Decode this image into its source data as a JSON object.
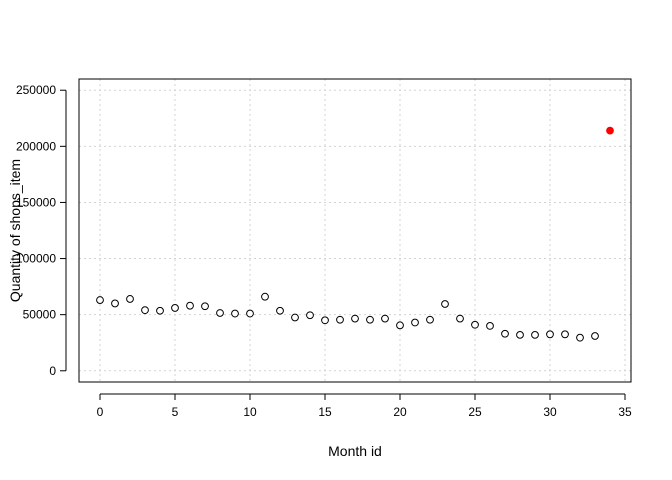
{
  "chart_data": {
    "type": "scatter",
    "title": "",
    "xlabel": "Month id",
    "ylabel": "Quantity of shops_item",
    "xlim": [
      -1.4,
      35.4
    ],
    "ylim": [
      -10000,
      260000
    ],
    "x_ticks": [
      0,
      5,
      10,
      15,
      20,
      25,
      30,
      35
    ],
    "y_ticks": [
      0,
      50000,
      100000,
      150000,
      200000,
      250000
    ],
    "grid": true,
    "legend": "none",
    "series": [
      {
        "marker": "open-circle",
        "color": "#000000",
        "points": [
          {
            "x": 0,
            "y": 63000
          },
          {
            "x": 1,
            "y": 60000
          },
          {
            "x": 2,
            "y": 64000
          },
          {
            "x": 3,
            "y": 54000
          },
          {
            "x": 4,
            "y": 53500
          },
          {
            "x": 5,
            "y": 56000
          },
          {
            "x": 6,
            "y": 58000
          },
          {
            "x": 7,
            "y": 57500
          },
          {
            "x": 8,
            "y": 51500
          },
          {
            "x": 9,
            "y": 51000
          },
          {
            "x": 10,
            "y": 51000
          },
          {
            "x": 11,
            "y": 66000
          },
          {
            "x": 12,
            "y": 53500
          },
          {
            "x": 13,
            "y": 47500
          },
          {
            "x": 14,
            "y": 49500
          },
          {
            "x": 15,
            "y": 45000
          },
          {
            "x": 16,
            "y": 45500
          },
          {
            "x": 17,
            "y": 46500
          },
          {
            "x": 18,
            "y": 45500
          },
          {
            "x": 19,
            "y": 46500
          },
          {
            "x": 20,
            "y": 40500
          },
          {
            "x": 21,
            "y": 43000
          },
          {
            "x": 22,
            "y": 45500
          },
          {
            "x": 23,
            "y": 59500
          },
          {
            "x": 24,
            "y": 46500
          },
          {
            "x": 25,
            "y": 41000
          },
          {
            "x": 26,
            "y": 40000
          },
          {
            "x": 27,
            "y": 33000
          },
          {
            "x": 28,
            "y": 32000
          },
          {
            "x": 29,
            "y": 32000
          },
          {
            "x": 30,
            "y": 32500
          },
          {
            "x": 31,
            "y": 32500
          },
          {
            "x": 32,
            "y": 29500
          },
          {
            "x": 33,
            "y": 31000
          }
        ]
      },
      {
        "marker": "filled-circle",
        "color": "#ff0000",
        "points": [
          {
            "x": 34,
            "y": 214000
          }
        ]
      }
    ]
  }
}
